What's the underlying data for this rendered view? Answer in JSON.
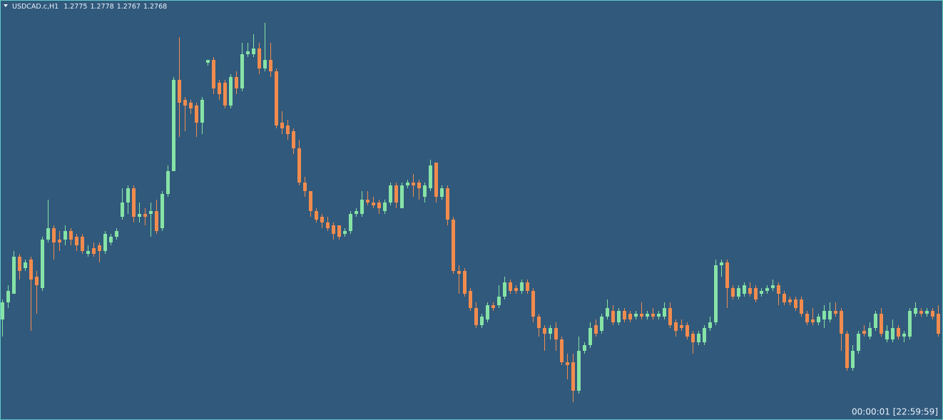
{
  "chart_data": {
    "type": "candlestick",
    "title": "USDCAD.c,H1",
    "timer": "00:00:01 [22:59:59]",
    "ylim": [
      1.2738,
      1.2885
    ],
    "up_color": "#86e3a6",
    "down_color": "#f28b4e",
    "background": "#31597b",
    "ohlc": [
      [
        1.2773,
        1.278,
        1.2767,
        1.2779
      ],
      [
        1.2779,
        1.2785,
        1.2777,
        1.2783
      ],
      [
        1.2782,
        1.2797,
        1.2782,
        1.2795
      ],
      [
        1.2795,
        1.2796,
        1.2787,
        1.279
      ],
      [
        1.2791,
        1.2794,
        1.279,
        1.2793
      ],
      [
        1.2794,
        1.2795,
        1.2769,
        1.2787
      ],
      [
        1.2788,
        1.279,
        1.2775,
        1.2785
      ],
      [
        1.2784,
        1.2802,
        1.2783,
        1.2801
      ],
      [
        1.2801,
        1.2815,
        1.28,
        1.2805
      ],
      [
        1.2805,
        1.2806,
        1.2794,
        1.28
      ],
      [
        1.2801,
        1.2804,
        1.2797,
        1.28
      ],
      [
        1.2801,
        1.2806,
        1.2799,
        1.2804
      ],
      [
        1.2804,
        1.2805,
        1.2799,
        1.2801
      ],
      [
        1.2802,
        1.2803,
        1.2797,
        1.2799
      ],
      [
        1.2802,
        1.2803,
        1.2796,
        1.2797
      ],
      [
        1.2796,
        1.2799,
        1.2795,
        1.2797
      ],
      [
        1.2798,
        1.28,
        1.2795,
        1.2796
      ],
      [
        1.2799,
        1.28,
        1.2793,
        1.2797
      ],
      [
        1.2797,
        1.2804,
        1.2796,
        1.2803
      ],
      [
        1.28,
        1.2803,
        1.2799,
        1.2802
      ],
      [
        1.2802,
        1.2805,
        1.2801,
        1.2804
      ],
      [
        1.2809,
        1.2819,
        1.2808,
        1.2814
      ],
      [
        1.2814,
        1.282,
        1.281,
        1.2819
      ],
      [
        1.2819,
        1.282,
        1.2807,
        1.2809
      ],
      [
        1.2809,
        1.2814,
        1.2807,
        1.281
      ],
      [
        1.281,
        1.2812,
        1.2806,
        1.2809
      ],
      [
        1.281,
        1.2814,
        1.2802,
        1.2811
      ],
      [
        1.2811,
        1.2815,
        1.2803,
        1.2804
      ],
      [
        1.2805,
        1.2818,
        1.2804,
        1.2817
      ],
      [
        1.2817,
        1.2827,
        1.2816,
        1.2825
      ],
      [
        1.2825,
        1.2858,
        1.2825,
        1.2857
      ],
      [
        1.2857,
        1.2872,
        1.2837,
        1.2849
      ],
      [
        1.285,
        1.2851,
        1.2839,
        1.2848
      ],
      [
        1.2849,
        1.285,
        1.2845,
        1.2847
      ],
      [
        1.2848,
        1.2849,
        1.2837,
        1.2842
      ],
      [
        1.2842,
        1.2851,
        1.2838,
        1.285
      ],
      [
        1.2863,
        1.2864,
        1.2862,
        1.2864
      ],
      [
        1.2864,
        1.2865,
        1.2852,
        1.2854
      ],
      [
        1.2856,
        1.2857,
        1.285,
        1.2852
      ],
      [
        1.2856,
        1.2857,
        1.2847,
        1.2848
      ],
      [
        1.2848,
        1.2859,
        1.2847,
        1.2858
      ],
      [
        1.2858,
        1.286,
        1.2852,
        1.2854
      ],
      [
        1.2854,
        1.287,
        1.2853,
        1.2866
      ],
      [
        1.2866,
        1.287,
        1.2865,
        1.2867
      ],
      [
        1.2866,
        1.2873,
        1.2865,
        1.2868
      ],
      [
        1.2868,
        1.287,
        1.2859,
        1.2861
      ],
      [
        1.2861,
        1.2877,
        1.286,
        1.2864
      ],
      [
        1.2864,
        1.287,
        1.2858,
        1.286
      ],
      [
        1.286,
        1.2861,
        1.284,
        1.2841
      ],
      [
        1.2842,
        1.2846,
        1.2838,
        1.284
      ],
      [
        1.2841,
        1.2843,
        1.2836,
        1.2838
      ],
      [
        1.2839,
        1.284,
        1.2831,
        1.2833
      ],
      [
        1.2833,
        1.2836,
        1.282,
        1.2821
      ],
      [
        1.2821,
        1.2823,
        1.2816,
        1.2818
      ],
      [
        1.2818,
        1.2818,
        1.2809,
        1.2811
      ],
      [
        1.2811,
        1.2812,
        1.2807,
        1.2808
      ],
      [
        1.2809,
        1.281,
        1.2805,
        1.2807
      ],
      [
        1.2807,
        1.2809,
        1.2804,
        1.2805
      ],
      [
        1.2806,
        1.2807,
        1.2801,
        1.2803
      ],
      [
        1.2806,
        1.2806,
        1.2801,
        1.2802
      ],
      [
        1.2803,
        1.2805,
        1.2802,
        1.2804
      ],
      [
        1.2804,
        1.2811,
        1.2803,
        1.281
      ],
      [
        1.281,
        1.2812,
        1.2809,
        1.2811
      ],
      [
        1.281,
        1.2818,
        1.2809,
        1.2815
      ],
      [
        1.2815,
        1.2818,
        1.2813,
        1.2814
      ],
      [
        1.2814,
        1.2816,
        1.2812,
        1.2813
      ],
      [
        1.2814,
        1.2815,
        1.281,
        1.2812
      ],
      [
        1.2811,
        1.2815,
        1.281,
        1.2814
      ],
      [
        1.2814,
        1.2821,
        1.2813,
        1.282
      ],
      [
        1.282,
        1.2821,
        1.2812,
        1.2814
      ],
      [
        1.2812,
        1.2821,
        1.2812,
        1.282
      ],
      [
        1.282,
        1.2822,
        1.2819,
        1.2821
      ],
      [
        1.2821,
        1.2824,
        1.2816,
        1.282
      ],
      [
        1.2821,
        1.2822,
        1.2815,
        1.2819
      ],
      [
        1.2816,
        1.2821,
        1.2814,
        1.282
      ],
      [
        1.2819,
        1.2829,
        1.2818,
        1.2827
      ],
      [
        1.2828,
        1.2828,
        1.2814,
        1.2816
      ],
      [
        1.2816,
        1.282,
        1.2815,
        1.2819
      ],
      [
        1.2819,
        1.282,
        1.2806,
        1.2808
      ],
      [
        1.2808,
        1.2809,
        1.2789,
        1.279
      ],
      [
        1.279,
        1.2792,
        1.2782,
        1.2789
      ],
      [
        1.279,
        1.2791,
        1.2781,
        1.2782
      ],
      [
        1.2783,
        1.2784,
        1.2776,
        1.2777
      ],
      [
        1.2777,
        1.2779,
        1.277,
        1.2771
      ],
      [
        1.2771,
        1.2775,
        1.277,
        1.2774
      ],
      [
        1.2773,
        1.2779,
        1.2772,
        1.2778
      ],
      [
        1.2778,
        1.2779,
        1.2776,
        1.2777
      ],
      [
        1.2778,
        1.2785,
        1.2777,
        1.2781
      ],
      [
        1.2781,
        1.2788,
        1.278,
        1.2786
      ],
      [
        1.2786,
        1.2787,
        1.2782,
        1.2783
      ],
      [
        1.2784,
        1.2785,
        1.2782,
        1.2783
      ],
      [
        1.2783,
        1.2787,
        1.2782,
        1.2786
      ],
      [
        1.2786,
        1.2787,
        1.2782,
        1.2783
      ],
      [
        1.2783,
        1.2784,
        1.2772,
        1.2774
      ],
      [
        1.2774,
        1.2775,
        1.2767,
        1.277
      ],
      [
        1.277,
        1.2771,
        1.2762,
        1.2768
      ],
      [
        1.2768,
        1.2771,
        1.2766,
        1.277
      ],
      [
        1.277,
        1.2772,
        1.2762,
        1.2766
      ],
      [
        1.2766,
        1.2767,
        1.2757,
        1.2758
      ],
      [
        1.2758,
        1.2761,
        1.2752,
        1.2757
      ],
      [
        1.2758,
        1.2761,
        1.2744,
        1.2748
      ],
      [
        1.2748,
        1.2767,
        1.2747,
        1.2762
      ],
      [
        1.2762,
        1.2765,
        1.2761,
        1.2764
      ],
      [
        1.2764,
        1.2772,
        1.2763,
        1.277
      ],
      [
        1.2771,
        1.2773,
        1.2767,
        1.2768
      ],
      [
        1.2769,
        1.2775,
        1.2768,
        1.2774
      ],
      [
        1.2774,
        1.278,
        1.2773,
        1.2777
      ],
      [
        1.2776,
        1.2778,
        1.2771,
        1.2772
      ],
      [
        1.2772,
        1.2777,
        1.2771,
        1.2776
      ],
      [
        1.2776,
        1.2777,
        1.2772,
        1.2773
      ],
      [
        1.2775,
        1.2776,
        1.2772,
        1.2773
      ],
      [
        1.2774,
        1.2776,
        1.2773,
        1.2775
      ],
      [
        1.2775,
        1.2779,
        1.2773,
        1.2774
      ],
      [
        1.2774,
        1.2776,
        1.2773,
        1.2775
      ],
      [
        1.2775,
        1.2777,
        1.2773,
        1.2774
      ],
      [
        1.2774,
        1.2776,
        1.2773,
        1.2775
      ],
      [
        1.2774,
        1.2779,
        1.2773,
        1.2777
      ],
      [
        1.2777,
        1.2779,
        1.277,
        1.2771
      ],
      [
        1.2772,
        1.2773,
        1.2767,
        1.2769
      ],
      [
        1.2771,
        1.2773,
        1.2769,
        1.277
      ],
      [
        1.2771,
        1.2772,
        1.2766,
        1.2767
      ],
      [
        1.2768,
        1.2769,
        1.2761,
        1.2765
      ],
      [
        1.2765,
        1.2769,
        1.2764,
        1.2768
      ],
      [
        1.2765,
        1.2771,
        1.2764,
        1.277
      ],
      [
        1.277,
        1.2774,
        1.2769,
        1.2772
      ],
      [
        1.2772,
        1.2794,
        1.2771,
        1.2792
      ],
      [
        1.2792,
        1.2794,
        1.2788,
        1.2793
      ],
      [
        1.2793,
        1.2794,
        1.2777,
        1.2784
      ],
      [
        1.2784,
        1.2785,
        1.278,
        1.2781
      ],
      [
        1.2781,
        1.2785,
        1.278,
        1.2784
      ],
      [
        1.2782,
        1.2786,
        1.2781,
        1.2785
      ],
      [
        1.2784,
        1.2786,
        1.2781,
        1.2782
      ],
      [
        1.2784,
        1.2785,
        1.2779,
        1.278
      ],
      [
        1.2782,
        1.2784,
        1.2781,
        1.2783
      ],
      [
        1.2783,
        1.2785,
        1.2782,
        1.2784
      ],
      [
        1.2784,
        1.2787,
        1.2783,
        1.2785
      ],
      [
        1.2785,
        1.2786,
        1.2778,
        1.2782
      ],
      [
        1.2782,
        1.2783,
        1.2778,
        1.2779
      ],
      [
        1.278,
        1.2781,
        1.2778,
        1.2779
      ],
      [
        1.278,
        1.2781,
        1.2776,
        1.2777
      ],
      [
        1.278,
        1.2781,
        1.2774,
        1.2775
      ],
      [
        1.2775,
        1.2776,
        1.2771,
        1.2772
      ],
      [
        1.2773,
        1.2777,
        1.2771,
        1.2772
      ],
      [
        1.2772,
        1.2775,
        1.2771,
        1.2774
      ],
      [
        1.2773,
        1.2778,
        1.277,
        1.2776
      ],
      [
        1.2773,
        1.2779,
        1.2772,
        1.2776
      ],
      [
        1.2776,
        1.2779,
        1.2774,
        1.2775
      ],
      [
        1.2776,
        1.2777,
        1.2762,
        1.2768
      ],
      [
        1.2768,
        1.2769,
        1.2755,
        1.2756
      ],
      [
        1.2756,
        1.2764,
        1.2755,
        1.2762
      ],
      [
        1.2762,
        1.2769,
        1.2761,
        1.2768
      ],
      [
        1.2769,
        1.2771,
        1.2767,
        1.2768
      ],
      [
        1.2767,
        1.2772,
        1.2766,
        1.277
      ],
      [
        1.277,
        1.2776,
        1.2769,
        1.2775
      ],
      [
        1.2775,
        1.2777,
        1.2767,
        1.2768
      ],
      [
        1.2766,
        1.2771,
        1.2765,
        1.2769
      ],
      [
        1.2766,
        1.2773,
        1.2765,
        1.277
      ],
      [
        1.277,
        1.2771,
        1.2766,
        1.2767
      ],
      [
        1.2767,
        1.2769,
        1.2765,
        1.2768
      ],
      [
        1.2767,
        1.2777,
        1.2766,
        1.2776
      ],
      [
        1.2775,
        1.2779,
        1.2774,
        1.2777
      ],
      [
        1.2776,
        1.2777,
        1.2774,
        1.2775
      ],
      [
        1.2775,
        1.2777,
        1.2774,
        1.2776
      ],
      [
        1.2776,
        1.2777,
        1.2773,
        1.2774
      ],
      [
        1.2775,
        1.2778,
        1.2767,
        1.2768
      ]
    ]
  }
}
